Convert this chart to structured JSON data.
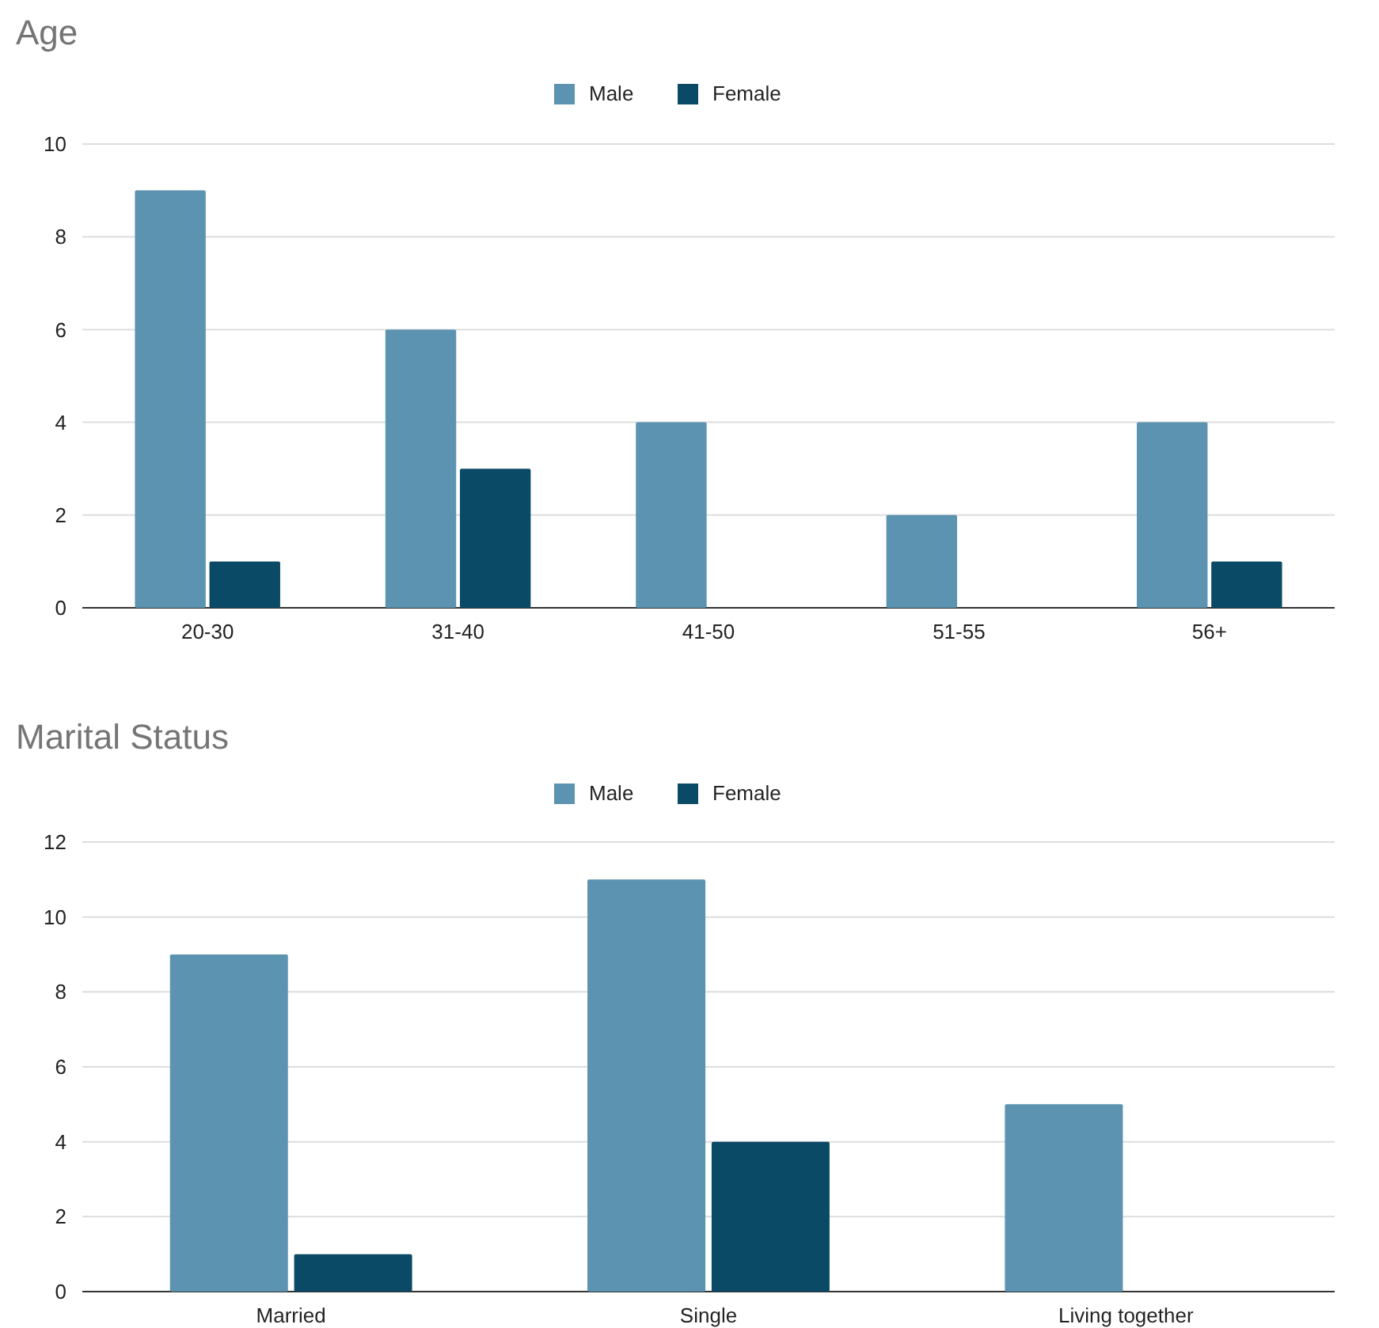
{
  "chart_data": [
    {
      "type": "bar",
      "title": "Age",
      "categories": [
        "20-30",
        "31-40",
        "41-50",
        "51-55",
        "56+"
      ],
      "series": [
        {
          "name": "Male",
          "color": "#5b93b0",
          "values": [
            9,
            6,
            4,
            2,
            4
          ]
        },
        {
          "name": "Female",
          "color": "#0b4a66",
          "values": [
            1,
            3,
            0,
            0,
            1
          ]
        }
      ],
      "ylim": [
        0,
        10
      ],
      "yticks": [
        0,
        2,
        4,
        6,
        8,
        10
      ],
      "grid": "y",
      "legend": "top"
    },
    {
      "type": "bar",
      "title": "Marital Status",
      "categories": [
        "Married",
        "Single",
        "Living together"
      ],
      "series": [
        {
          "name": "Male",
          "color": "#5b93b0",
          "values": [
            9,
            11,
            5
          ]
        },
        {
          "name": "Female",
          "color": "#0b4a66",
          "values": [
            1,
            4,
            0
          ]
        }
      ],
      "ylim": [
        0,
        12
      ],
      "yticks": [
        0,
        2,
        4,
        6,
        8,
        10,
        12
      ],
      "grid": "y",
      "legend": "top"
    }
  ]
}
